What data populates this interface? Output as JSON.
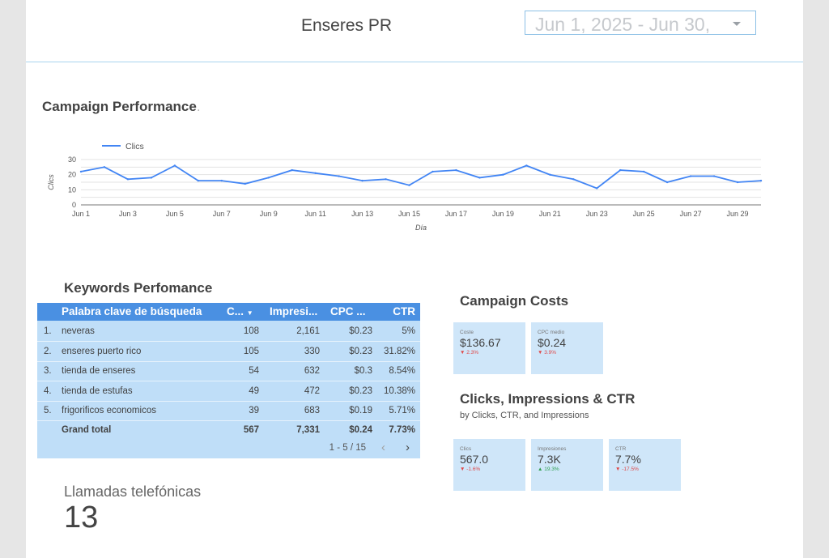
{
  "header": {
    "title": "Enseres PR",
    "date_range": "Jun 1, 2025 - Jun 30,"
  },
  "campaign_performance": {
    "title": "Campaign Performance",
    "title_suffix": "."
  },
  "chart_data": {
    "type": "line",
    "title": "",
    "xlabel": "Día",
    "ylabel": "Clics",
    "ylim": [
      0,
      30
    ],
    "yticks": [
      0,
      10,
      20,
      30
    ],
    "x": [
      "Jun 1",
      "Jun 2",
      "Jun 3",
      "Jun 4",
      "Jun 5",
      "Jun 6",
      "Jun 7",
      "Jun 8",
      "Jun 9",
      "Jun 10",
      "Jun 11",
      "Jun 12",
      "Jun 13",
      "Jun 14",
      "Jun 15",
      "Jun 16",
      "Jun 17",
      "Jun 18",
      "Jun 19",
      "Jun 20",
      "Jun 21",
      "Jun 22",
      "Jun 23",
      "Jun 24",
      "Jun 25",
      "Jun 26",
      "Jun 27",
      "Jun 28",
      "Jun 29",
      "Jun 30"
    ],
    "xtick_labels": [
      "Jun 1",
      "Jun 3",
      "Jun 5",
      "Jun 7",
      "Jun 9",
      "Jun 11",
      "Jun 13",
      "Jun 15",
      "Jun 17",
      "Jun 19",
      "Jun 21",
      "Jun 23",
      "Jun 25",
      "Jun 27",
      "Jun 29"
    ],
    "series": [
      {
        "name": "Clics",
        "color": "#4285f4",
        "values": [
          22,
          25,
          17,
          18,
          26,
          16,
          16,
          14,
          18,
          23,
          21,
          19,
          16,
          17,
          13,
          22,
          23,
          18,
          20,
          26,
          20,
          17,
          11,
          23,
          22,
          15,
          19,
          19,
          15,
          16
        ]
      }
    ],
    "legend": "top-left",
    "grid": true
  },
  "keywords": {
    "title": "Keywords Perfomance",
    "columns": [
      "Palabra clave de búsqueda",
      "C...",
      "Impresi...",
      "CPC ...",
      "CTR"
    ],
    "sort_indicator": "▼",
    "rows": [
      {
        "n": "1.",
        "keyword": "neveras",
        "clicks": "108",
        "impressions": "2,161",
        "cpc": "$0.23",
        "ctr": "5%"
      },
      {
        "n": "2.",
        "keyword": "enseres puerto rico",
        "clicks": "105",
        "impressions": "330",
        "cpc": "$0.23",
        "ctr": "31.82%"
      },
      {
        "n": "3.",
        "keyword": "tienda de enseres",
        "clicks": "54",
        "impressions": "632",
        "cpc": "$0.3",
        "ctr": "8.54%"
      },
      {
        "n": "4.",
        "keyword": "tienda de estufas",
        "clicks": "49",
        "impressions": "472",
        "cpc": "$0.23",
        "ctr": "10.38%"
      },
      {
        "n": "5.",
        "keyword": "frigorificos economicos",
        "clicks": "39",
        "impressions": "683",
        "cpc": "$0.19",
        "ctr": "5.71%"
      }
    ],
    "total": {
      "label": "Grand total",
      "clicks": "567",
      "impressions": "7,331",
      "cpc": "$0.24",
      "ctr": "7.73%"
    },
    "pagination": "1 - 5 / 15",
    "prev_icon": "‹",
    "next_icon": "›"
  },
  "campaign_costs": {
    "title": "Campaign Costs",
    "cards": [
      {
        "label": "Coste",
        "value": "$136.67",
        "change": "2.3%",
        "direction": "down"
      },
      {
        "label": "CPC medio",
        "value": "$0.24",
        "change": "3.9%",
        "direction": "down"
      }
    ]
  },
  "cic": {
    "title": "Clicks, Impressions & CTR",
    "subtitle": "by Clicks, CTR, and Impressions",
    "cards": [
      {
        "label": "Clics",
        "value": "567.0",
        "change": "-1.6%",
        "direction": "down"
      },
      {
        "label": "Impresiones",
        "value": "7.3K",
        "change": "19.3%",
        "direction": "up"
      },
      {
        "label": "CTR",
        "value": "7.7%",
        "change": "-17.5%",
        "direction": "down"
      }
    ]
  },
  "calls": {
    "label": "Llamadas telefónicas",
    "value": "13"
  },
  "colors": {
    "accent": "#4a90e2",
    "line": "#4285f4",
    "table_bg": "#bfdef8",
    "card_bg": "#cfe6f9",
    "down": "#e04848",
    "up": "#2e9e4f"
  }
}
